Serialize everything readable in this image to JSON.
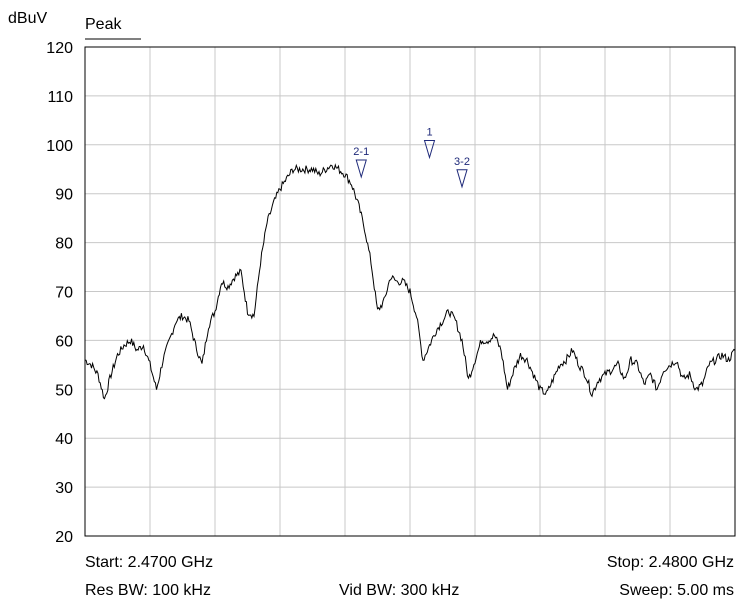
{
  "chart_data": {
    "type": "line",
    "ylabel": "dBuV",
    "trace_label": "Peak",
    "ylim": [
      20,
      120
    ],
    "yticks": [
      20,
      30,
      40,
      50,
      60,
      70,
      80,
      90,
      100,
      110,
      120
    ],
    "x_divisions": 10,
    "grid": true,
    "xlim_ghz": [
      2.47,
      2.48
    ],
    "series": [
      {
        "x": [
          0,
          0.1,
          0.2,
          0.3,
          0.4,
          0.5,
          0.6,
          0.7,
          0.8,
          0.9,
          1.0,
          1.1,
          1.2,
          1.3,
          1.4,
          1.5,
          1.6,
          1.7,
          1.8,
          1.9,
          2.0,
          2.1,
          2.2,
          2.3,
          2.4,
          2.5,
          2.6,
          2.7,
          2.8,
          2.9,
          3.0,
          3.1,
          3.2,
          3.3,
          3.4,
          3.5,
          3.6,
          3.7,
          3.8,
          3.9,
          4.0,
          4.1,
          4.2,
          4.3,
          4.4,
          4.5,
          4.6,
          4.7,
          4.8,
          4.9,
          5.0,
          5.1,
          5.2,
          5.3,
          5.4,
          5.5,
          5.6,
          5.7,
          5.8,
          5.9,
          6.0,
          6.1,
          6.2,
          6.3,
          6.4,
          6.5,
          6.6,
          6.7,
          6.8,
          6.9,
          7.0,
          7.1,
          7.2,
          7.3,
          7.4,
          7.5,
          7.6,
          7.7,
          7.8,
          7.9,
          8.0,
          8.1,
          8.2,
          8.3,
          8.4,
          8.5,
          8.6,
          8.7,
          8.8,
          8.9,
          9.0,
          9.1,
          9.2,
          9.3,
          9.4,
          9.5,
          9.6,
          9.7,
          9.8,
          9.9,
          10.0
        ],
        "y": [
          56,
          55,
          53,
          48,
          53,
          57,
          59,
          60,
          58,
          59,
          55,
          50,
          56,
          60,
          64,
          65,
          64,
          59,
          55,
          63,
          66,
          72,
          71,
          73,
          74,
          66,
          65,
          76,
          84,
          88,
          91,
          93,
          95,
          95,
          95,
          95,
          94,
          95,
          96,
          95,
          94,
          92,
          88,
          83,
          76,
          66,
          68,
          73,
          72,
          72,
          70,
          65,
          56,
          59,
          62,
          64,
          66,
          64,
          60,
          52,
          56,
          60,
          60,
          61,
          58,
          50,
          54,
          57,
          56,
          53,
          50,
          49,
          52,
          55,
          56,
          58,
          55,
          53,
          49,
          52,
          53,
          54,
          55,
          52,
          56,
          55,
          51,
          53,
          50,
          54,
          55,
          56,
          52,
          53,
          50,
          51,
          55,
          56,
          57,
          56,
          58
        ]
      }
    ],
    "markers": [
      {
        "label": "1",
        "x": 5.3,
        "y": 97
      },
      {
        "label": "2-1",
        "x": 4.25,
        "y": 93
      },
      {
        "label": "3-2",
        "x": 5.8,
        "y": 91
      }
    ]
  },
  "footer": {
    "start": "Start: 2.4700 GHz",
    "stop": "Stop: 2.4800 GHz",
    "res_bw": "Res BW: 100 kHz",
    "vid_bw": "Vid BW: 300 kHz",
    "sweep": "Sweep: 5.00 ms"
  },
  "colors": {
    "trace": "#000000",
    "grid": "#c8c8c8",
    "marker": "#1f2a7a"
  }
}
